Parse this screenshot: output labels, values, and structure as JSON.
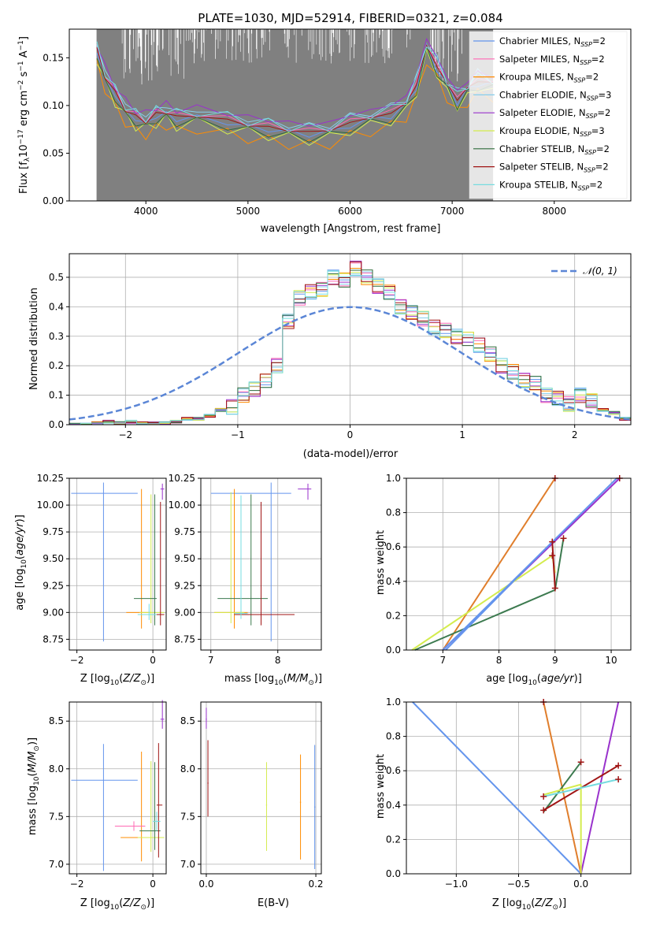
{
  "colors": {
    "chabrier_miles": "#6495ed",
    "salpeter_miles": "#ff69b4",
    "kroupa_miles": "#ff8c00",
    "chabrier_elodie": "#87ceeb",
    "salpeter_elodie": "#9932cc",
    "kroupa_elodie": "#d4ec4e",
    "chabrier_stelib": "#2e6b3a",
    "salpeter_stelib": "#a01414",
    "kroupa_stelib": "#76dce0",
    "data_gray": "#808080",
    "normal_curve": "#5b86d6",
    "cs_green": "#3c7a4f",
    "km_orange": "#e07e2c"
  },
  "chart_data": [
    {
      "id": "spectrum",
      "type": "line",
      "title": "PLATE=1030, MJD=52914, FIBERID=0321, z=0.084",
      "xlabel": "wavelength [Angstrom, rest frame]",
      "ylabel": "Flux [f_λ10^-17 erg cm^-2 s^-1 A^-1]",
      "xlim": [
        3250,
        8750
      ],
      "ylim": [
        0,
        0.18
      ],
      "xticks": [
        "4000",
        "5000",
        "6000",
        "7000",
        "8000"
      ],
      "yticks": [
        "0.00",
        "0.05",
        "0.10",
        "0.15"
      ],
      "grid": false,
      "legend_position": "right",
      "legend": [
        {
          "label": "Chabrier MILES, N",
          "sub": "SSP",
          "suffix": "=2",
          "color": "#6495ed"
        },
        {
          "label": "Salpeter MILES, N",
          "sub": "SSP",
          "suffix": "=2",
          "color": "#ff69b4"
        },
        {
          "label": "Kroupa MILES, N",
          "sub": "SSP",
          "suffix": "=2",
          "color": "#ff8c00"
        },
        {
          "label": "Chabrier ELODIE, N",
          "sub": "SSP",
          "suffix": "=3",
          "color": "#87ceeb"
        },
        {
          "label": "Salpeter ELODIE, N",
          "sub": "SSP",
          "suffix": "=2",
          "color": "#9932cc"
        },
        {
          "label": "Kroupa ELODIE, N",
          "sub": "SSP",
          "suffix": "=3",
          "color": "#d4ec4e"
        },
        {
          "label": "Chabrier STELIB, N",
          "sub": "SSP",
          "suffix": "=2",
          "color": "#2e6b3a"
        },
        {
          "label": "Salpeter STELIB, N",
          "sub": "SSP",
          "suffix": "=2",
          "color": "#a01414"
        },
        {
          "label": "Kroupa STELIB, N",
          "sub": "SSP",
          "suffix": "=2",
          "color": "#76dce0"
        }
      ],
      "model_curve": {
        "x": [
          3520,
          3600,
          3700,
          3800,
          3900,
          4000,
          4100,
          4200,
          4300,
          4500,
          4800,
          5000,
          5200,
          5400,
          5600,
          5800,
          6000,
          6200,
          6400,
          6550,
          6650,
          6750,
          6850,
          6950,
          7050,
          7150,
          7250,
          7400
        ],
        "y": [
          0.155,
          0.13,
          0.11,
          0.095,
          0.085,
          0.082,
          0.088,
          0.092,
          0.085,
          0.088,
          0.082,
          0.078,
          0.075,
          0.072,
          0.07,
          0.072,
          0.08,
          0.085,
          0.09,
          0.1,
          0.12,
          0.16,
          0.14,
          0.12,
          0.105,
          0.115,
          0.125,
          0.12
        ]
      }
    },
    {
      "id": "residuals",
      "type": "line",
      "xlabel": "(data-model)/error",
      "ylabel": "Normed distribution",
      "xlim": [
        -2.5,
        2.5
      ],
      "ylim": [
        0,
        0.58
      ],
      "xticks": [
        "−2",
        "−1",
        "0",
        "1",
        "2"
      ],
      "yticks": [
        "0.0",
        "0.1",
        "0.2",
        "0.3",
        "0.4",
        "0.5"
      ],
      "grid": true,
      "legend_position": "top-right",
      "legend": [
        {
          "label": "N(0, 1)",
          "color": "#5b86d6"
        }
      ],
      "hist_x": [
        -2.5,
        -2.4,
        -2.3,
        -2.2,
        -2.1,
        -2.0,
        -1.9,
        -1.8,
        -1.7,
        -1.6,
        -1.5,
        -1.4,
        -1.3,
        -1.2,
        -1.1,
        -1.0,
        -0.9,
        -0.8,
        -0.7,
        -0.6,
        -0.5,
        -0.4,
        -0.3,
        -0.2,
        -0.1,
        0.0,
        0.1,
        0.2,
        0.3,
        0.4,
        0.5,
        0.6,
        0.7,
        0.8,
        0.9,
        1.0,
        1.1,
        1.2,
        1.3,
        1.4,
        1.5,
        1.6,
        1.7,
        1.8,
        1.9,
        2.0,
        2.1,
        2.2,
        2.3,
        2.4
      ],
      "hist_y": [
        0.0,
        0.0,
        0.005,
        0.01,
        0.005,
        0.01,
        0.005,
        0.005,
        0.005,
        0.01,
        0.02,
        0.02,
        0.03,
        0.05,
        0.06,
        0.1,
        0.12,
        0.15,
        0.2,
        0.35,
        0.43,
        0.45,
        0.46,
        0.5,
        0.49,
        0.53,
        0.5,
        0.47,
        0.45,
        0.4,
        0.38,
        0.36,
        0.33,
        0.32,
        0.3,
        0.29,
        0.27,
        0.24,
        0.2,
        0.18,
        0.15,
        0.14,
        0.1,
        0.09,
        0.07,
        0.1,
        0.08,
        0.05,
        0.04,
        0.02
      ],
      "normal": {
        "mean": 0,
        "sigma": 1
      }
    },
    {
      "id": "age_vs_z",
      "type": "scatter",
      "xlabel": "Z [log10(Z/Z⊙)]",
      "ylabel": "age  [log10(age/yr)]",
      "xlim": [
        -2.2,
        0.35
      ],
      "ylim": [
        8.65,
        10.25
      ],
      "xticks": [
        "−2",
        "0"
      ],
      "yticks": [
        "8.75",
        "9.00",
        "9.25",
        "9.50",
        "9.75",
        "10.00",
        "10.25"
      ],
      "grid": true
    },
    {
      "id": "age_vs_mass",
      "type": "scatter",
      "xlabel": "mass [log10(M/M⊙)]",
      "ylabel": "",
      "xlim": [
        6.85,
        8.65
      ],
      "ylim": [
        8.65,
        10.25
      ],
      "xticks": [
        "7",
        "8"
      ],
      "yticks": [
        "8.75",
        "9.00",
        "9.25",
        "9.50",
        "9.75",
        "10.00",
        "10.25"
      ],
      "grid": true
    },
    {
      "id": "weight_vs_age",
      "type": "line",
      "xlabel": "age  [log10(age/yr)]",
      "ylabel": "mass weight",
      "xlim": [
        6.35,
        10.35
      ],
      "ylim": [
        0,
        1
      ],
      "xticks": [
        "7",
        "8",
        "9",
        "10"
      ],
      "yticks": [
        "0.0",
        "0.2",
        "0.4",
        "0.6",
        "0.8",
        "1.0"
      ],
      "grid": true
    },
    {
      "id": "mass_vs_z",
      "type": "scatter",
      "xlabel": "Z [log10(Z/Z⊙)]",
      "ylabel": "mass [log10(M/M⊙)]",
      "xlim": [
        -2.2,
        0.35
      ],
      "ylim": [
        6.9,
        8.7
      ],
      "xticks": [
        "−2",
        "0"
      ],
      "yticks": [
        "7.0",
        "7.5",
        "8.0",
        "8.5"
      ],
      "grid": true
    },
    {
      "id": "mass_vs_ebv",
      "type": "scatter",
      "xlabel": "E(B-V)",
      "ylabel": "",
      "xlim": [
        -0.01,
        0.21
      ],
      "ylim": [
        6.9,
        8.7
      ],
      "xticks": [
        "0.0",
        "0.2"
      ],
      "yticks": [
        "7.0",
        "7.5",
        "8.0",
        "8.5"
      ],
      "grid": true
    },
    {
      "id": "weight_vs_z",
      "type": "line",
      "xlabel": "Z [log10(Z/Z⊙)]",
      "ylabel": "mass weight",
      "xlim": [
        -1.4,
        0.4
      ],
      "ylim": [
        0,
        1
      ],
      "xticks": [
        "−1.0",
        "−0.5",
        "0.0"
      ],
      "yticks": [
        "0.0",
        "0.2",
        "0.4",
        "0.6",
        "0.8",
        "1.0"
      ],
      "grid": true
    }
  ]
}
